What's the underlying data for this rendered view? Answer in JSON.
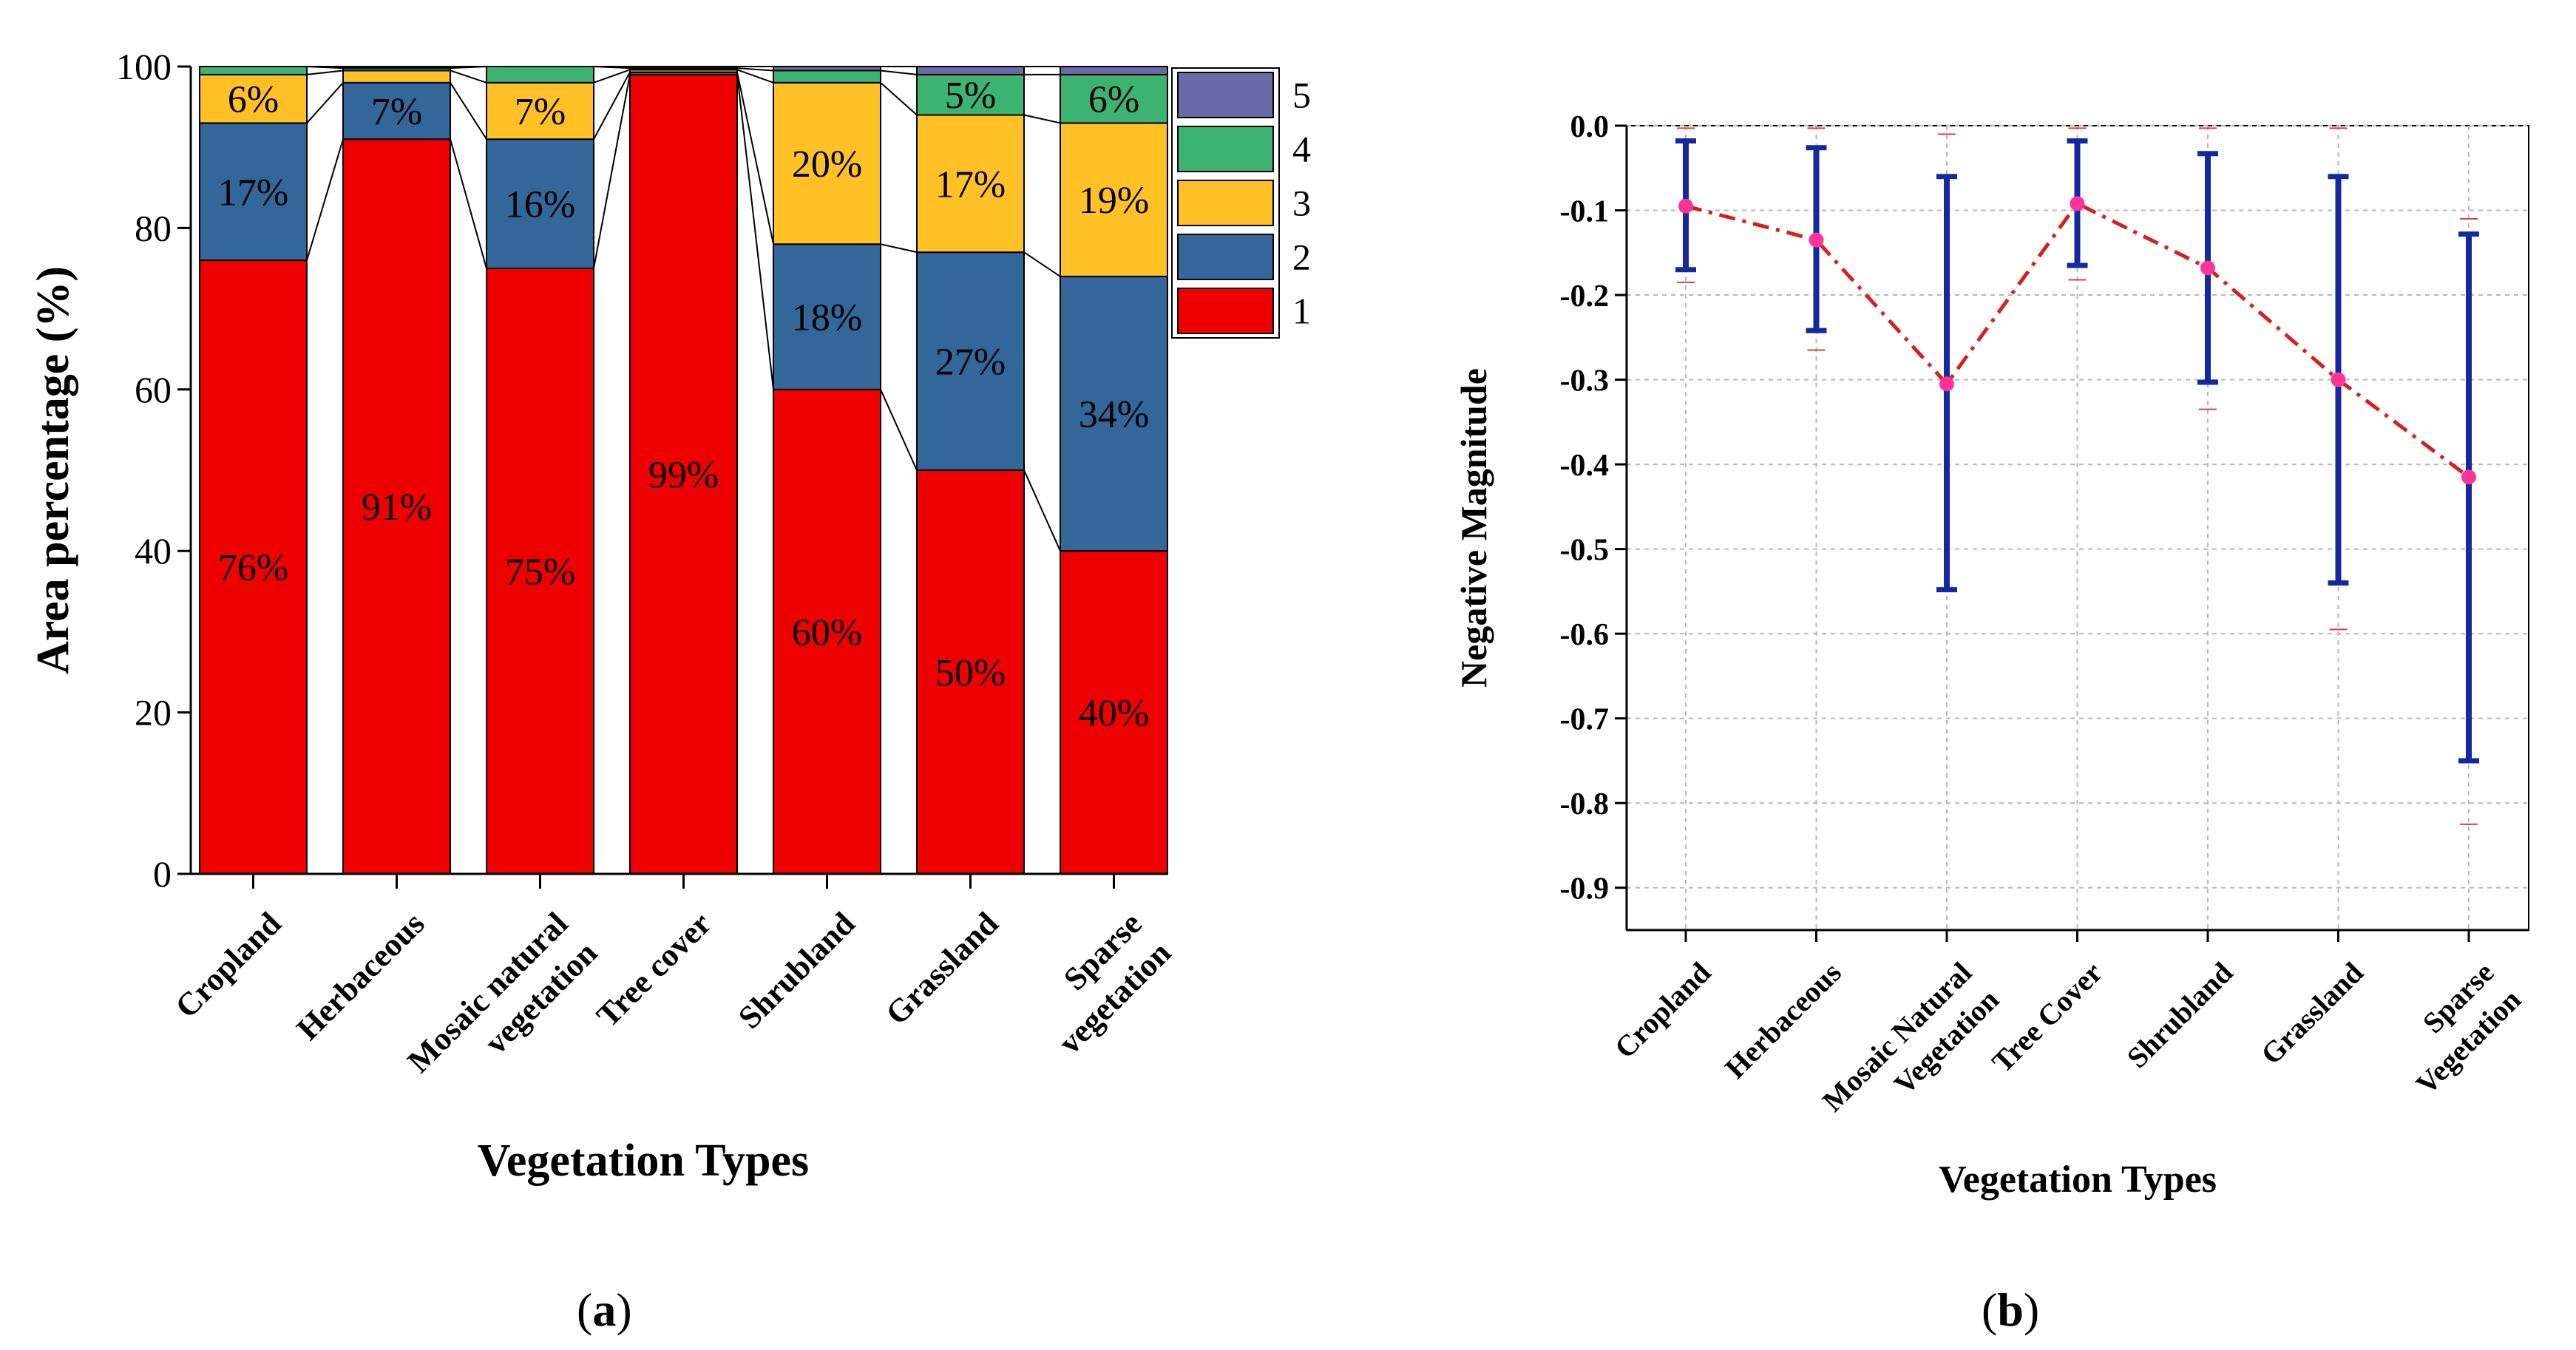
{
  "figure": {
    "panel_a_label": "a",
    "panel_b_label": "b"
  },
  "colors": {
    "class1": "#ee0000",
    "class2": "#336699",
    "class3": "#ffc125",
    "class4": "#3cb371",
    "class5": "#6a6aa8",
    "error_bar": "#1428a0",
    "mean_line": "#d42020",
    "mean_point": "#ff3399",
    "axis": "#000000",
    "grid": "#b8b8b8"
  },
  "chart_data": [
    {
      "type": "bar",
      "stacked": true,
      "title": "",
      "xlabel": "Vegetation Types",
      "ylabel": "Area percentage (%)",
      "ylim": [
        0,
        100
      ],
      "yticks": [
        0,
        20,
        40,
        60,
        80,
        100
      ],
      "categories": [
        [
          "Cropland"
        ],
        [
          "Herbaceous"
        ],
        [
          "Mosaic natural",
          "vegetation"
        ],
        [
          "Tree cover"
        ],
        [
          "Shrubland"
        ],
        [
          "Grassland"
        ],
        [
          "Sparse",
          "vegetation"
        ]
      ],
      "series": [
        {
          "name": "1",
          "values": [
            76,
            91,
            75,
            99,
            60,
            50,
            40
          ]
        },
        {
          "name": "2",
          "values": [
            17,
            7,
            16,
            0.3,
            18,
            27,
            34
          ]
        },
        {
          "name": "3",
          "values": [
            6,
            1.5,
            7,
            0.3,
            20,
            17,
            19
          ]
        },
        {
          "name": "4",
          "values": [
            1,
            0.3,
            2,
            0.2,
            1.5,
            5,
            6
          ]
        },
        {
          "name": "5",
          "values": [
            0,
            0.2,
            0,
            0.2,
            0.5,
            1,
            1
          ]
        }
      ],
      "data_labels": [
        [
          "76%",
          "17%",
          "6%",
          "",
          ""
        ],
        [
          "91%",
          "7%",
          "",
          "",
          ""
        ],
        [
          "75%",
          "16%",
          "7%",
          "",
          ""
        ],
        [
          "99%",
          "",
          "",
          "",
          ""
        ],
        [
          "60%",
          "18%",
          "20%",
          "",
          ""
        ],
        [
          "50%",
          "27%",
          "17%",
          "5%",
          ""
        ],
        [
          "40%",
          "34%",
          "19%",
          "6%",
          ""
        ]
      ],
      "legend": {
        "position": "top-right",
        "entries": [
          "5",
          "4",
          "3",
          "2",
          "1"
        ]
      }
    },
    {
      "type": "line",
      "error_bars": true,
      "title": "",
      "xlabel": "Vegetation Types",
      "ylabel": "Negative Magnitude",
      "ylim": [
        -0.95,
        0.0
      ],
      "yticks": [
        0.0,
        -0.1,
        -0.2,
        -0.3,
        -0.4,
        -0.5,
        -0.6,
        -0.7,
        -0.8,
        -0.9
      ],
      "ytick_labels": [
        "0.0",
        "-0.1",
        "-0.2",
        "-0.3",
        "-0.4",
        "-0.5",
        "-0.6",
        "-0.7",
        "-0.8",
        "-0.9"
      ],
      "grid": true,
      "categories": [
        [
          "Cropland"
        ],
        [
          "Herbaceous"
        ],
        [
          "Mosaic Natural",
          "Vegetation"
        ],
        [
          "Tree Cover"
        ],
        [
          "Shrubland"
        ],
        [
          "Grassland"
        ],
        [
          "Sparse",
          "Vegetation"
        ]
      ],
      "mean": [
        -0.095,
        -0.135,
        -0.305,
        -0.092,
        -0.168,
        -0.3,
        -0.415
      ],
      "err_low": [
        -0.17,
        -0.242,
        -0.548,
        -0.165,
        -0.303,
        -0.54,
        -0.75
      ],
      "err_high": [
        -0.018,
        -0.026,
        -0.06,
        -0.018,
        -0.033,
        -0.06,
        -0.128
      ],
      "range_low": [
        -0.185,
        -0.265,
        -0.01,
        -0.182,
        -0.335,
        -0.595,
        -0.825
      ],
      "range_high": [
        -0.003,
        -0.003,
        -0.01,
        -0.003,
        -0.003,
        -0.003,
        -0.11
      ]
    }
  ]
}
